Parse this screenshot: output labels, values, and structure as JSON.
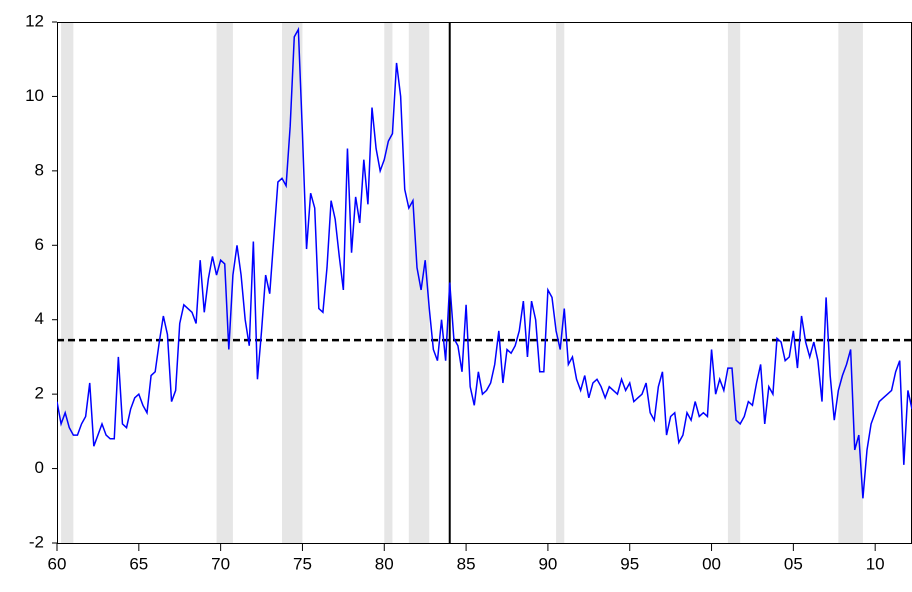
{
  "chart_data": {
    "type": "line",
    "color": "#0000ff",
    "x": [
      1960,
      1960.25,
      1960.5,
      1960.75,
      1961,
      1961.25,
      1961.5,
      1961.75,
      1962,
      1962.25,
      1962.5,
      1962.75,
      1963,
      1963.25,
      1963.5,
      1963.75,
      1964,
      1964.25,
      1964.5,
      1964.75,
      1965,
      1965.25,
      1965.5,
      1965.75,
      1966,
      1966.25,
      1966.5,
      1966.75,
      1967,
      1967.25,
      1967.5,
      1967.75,
      1968,
      1968.25,
      1968.5,
      1968.75,
      1969,
      1969.25,
      1969.5,
      1969.75,
      1970,
      1970.25,
      1970.5,
      1970.75,
      1971,
      1971.25,
      1971.5,
      1971.75,
      1972,
      1972.25,
      1972.5,
      1972.75,
      1973,
      1973.25,
      1973.5,
      1973.75,
      1974,
      1974.25,
      1974.5,
      1974.75,
      1975,
      1975.25,
      1975.5,
      1975.75,
      1976,
      1976.25,
      1976.5,
      1976.75,
      1977,
      1977.25,
      1977.5,
      1977.75,
      1978,
      1978.25,
      1978.5,
      1978.75,
      1979,
      1979.25,
      1979.5,
      1979.75,
      1980,
      1980.25,
      1980.5,
      1980.75,
      1981,
      1981.25,
      1981.5,
      1981.75,
      1982,
      1982.25,
      1982.5,
      1982.75,
      1983,
      1983.25,
      1983.5,
      1983.75,
      1984,
      1984.25,
      1984.5,
      1984.75,
      1985,
      1985.25,
      1985.5,
      1985.75,
      1986,
      1986.25,
      1986.5,
      1986.75,
      1987,
      1987.25,
      1987.5,
      1987.75,
      1988,
      1988.25,
      1988.5,
      1988.75,
      1989,
      1989.25,
      1989.5,
      1989.75,
      1990,
      1990.25,
      1990.5,
      1990.75,
      1991,
      1991.25,
      1991.5,
      1991.75,
      1992,
      1992.25,
      1992.5,
      1992.75,
      1993,
      1993.25,
      1993.5,
      1993.75,
      1994,
      1994.25,
      1994.5,
      1994.75,
      1995,
      1995.25,
      1995.5,
      1995.75,
      1996,
      1996.25,
      1996.5,
      1996.75,
      1997,
      1997.25,
      1997.5,
      1997.75,
      1998,
      1998.25,
      1998.5,
      1998.75,
      1999,
      1999.25,
      1999.5,
      1999.75,
      2000,
      2000.25,
      2000.5,
      2000.75,
      2001,
      2001.25,
      2001.5,
      2001.75,
      2002,
      2002.25,
      2002.5,
      2002.75,
      2003,
      2003.25,
      2003.5,
      2003.75,
      2004,
      2004.25,
      2004.5,
      2004.75,
      2005,
      2005.25,
      2005.5,
      2005.75,
      2006,
      2006.25,
      2006.5,
      2006.75,
      2007,
      2007.25,
      2007.5,
      2007.75,
      2008,
      2008.25,
      2008.5,
      2008.75,
      2009,
      2009.25,
      2009.5,
      2009.75,
      2010,
      2010.25,
      2010.5,
      2010.75,
      2011,
      2011.25,
      2011.5,
      2011.75,
      2012,
      2012.25
    ],
    "values": [
      1.8,
      1.2,
      1.5,
      1.1,
      0.9,
      0.9,
      1.2,
      1.4,
      2.3,
      0.6,
      0.9,
      1.2,
      0.9,
      0.8,
      0.8,
      3.0,
      1.2,
      1.1,
      1.6,
      1.9,
      2.0,
      1.7,
      1.5,
      2.5,
      2.6,
      3.4,
      4.1,
      3.6,
      1.8,
      2.1,
      3.9,
      4.4,
      4.3,
      4.2,
      3.9,
      5.6,
      4.2,
      5.1,
      5.7,
      5.2,
      5.6,
      5.5,
      3.2,
      5.2,
      6.0,
      5.2,
      4.0,
      3.3,
      6.1,
      2.4,
      3.7,
      5.2,
      4.7,
      6.2,
      7.7,
      7.8,
      7.6,
      9.2,
      11.6,
      11.8,
      9.0,
      5.9,
      7.4,
      7.0,
      4.3,
      4.2,
      5.4,
      7.2,
      6.7,
      5.7,
      4.8,
      8.6,
      5.8,
      7.3,
      6.6,
      8.3,
      7.1,
      9.7,
      8.6,
      8.0,
      8.3,
      8.8,
      9.0,
      10.9,
      10.0,
      7.5,
      7.0,
      7.2,
      5.4,
      4.8,
      5.6,
      4.3,
      3.2,
      2.9,
      4.0,
      2.9,
      5.0,
      3.5,
      3.3,
      2.6,
      4.4,
      2.2,
      1.7,
      2.6,
      2.0,
      2.1,
      2.3,
      2.8,
      3.7,
      2.3,
      3.2,
      3.1,
      3.3,
      3.7,
      4.5,
      3.0,
      4.5,
      4.0,
      2.6,
      2.6,
      4.8,
      4.6,
      3.7,
      3.2,
      4.3,
      2.8,
      3.0,
      2.4,
      2.1,
      2.5,
      1.9,
      2.3,
      2.4,
      2.2,
      1.9,
      2.2,
      2.1,
      2.0,
      2.4,
      2.1,
      2.3,
      1.8,
      1.9,
      2.0,
      2.3,
      1.5,
      1.3,
      2.2,
      2.6,
      0.9,
      1.4,
      1.5,
      0.7,
      0.9,
      1.5,
      1.3,
      1.8,
      1.4,
      1.5,
      1.4,
      3.2,
      2.0,
      2.4,
      2.1,
      2.7,
      2.7,
      1.3,
      1.2,
      1.4,
      1.8,
      1.7,
      2.3,
      2.8,
      1.2,
      2.2,
      2.0,
      3.5,
      3.4,
      2.9,
      3.0,
      3.7,
      2.7,
      4.1,
      3.4,
      3.0,
      3.4,
      2.9,
      1.8,
      4.6,
      2.5,
      1.3,
      2.1,
      2.5,
      2.8,
      3.2,
      0.5,
      0.9,
      -0.8,
      0.5,
      1.2,
      1.5,
      1.8,
      1.9,
      2.0,
      2.1,
      2.6,
      2.9,
      0.1,
      2.1,
      1.6
    ],
    "xlim": [
      1960,
      2012.25
    ],
    "ylim": [
      -2,
      12
    ],
    "yticks": [
      -2,
      0,
      2,
      4,
      6,
      8,
      10,
      12
    ],
    "xticks": [
      {
        "value": 1960,
        "label": "60"
      },
      {
        "value": 1965,
        "label": "65"
      },
      {
        "value": 1970,
        "label": "70"
      },
      {
        "value": 1975,
        "label": "75"
      },
      {
        "value": 1980,
        "label": "80"
      },
      {
        "value": 1985,
        "label": "85"
      },
      {
        "value": 1990,
        "label": "90"
      },
      {
        "value": 1995,
        "label": "95"
      },
      {
        "value": 2000,
        "label": "00"
      },
      {
        "value": 2005,
        "label": "05"
      },
      {
        "value": 2010,
        "label": "10"
      }
    ],
    "shaded_periods": [
      [
        1960.25,
        1961
      ],
      [
        1969.75,
        1970.75
      ],
      [
        1973.75,
        1975
      ],
      [
        1980,
        1980.5
      ],
      [
        1981.5,
        1982.75
      ],
      [
        1990.5,
        1991
      ],
      [
        2001,
        2001.75
      ],
      [
        2007.75,
        2009.25
      ]
    ],
    "hline": 3.45,
    "vline": 1984
  }
}
